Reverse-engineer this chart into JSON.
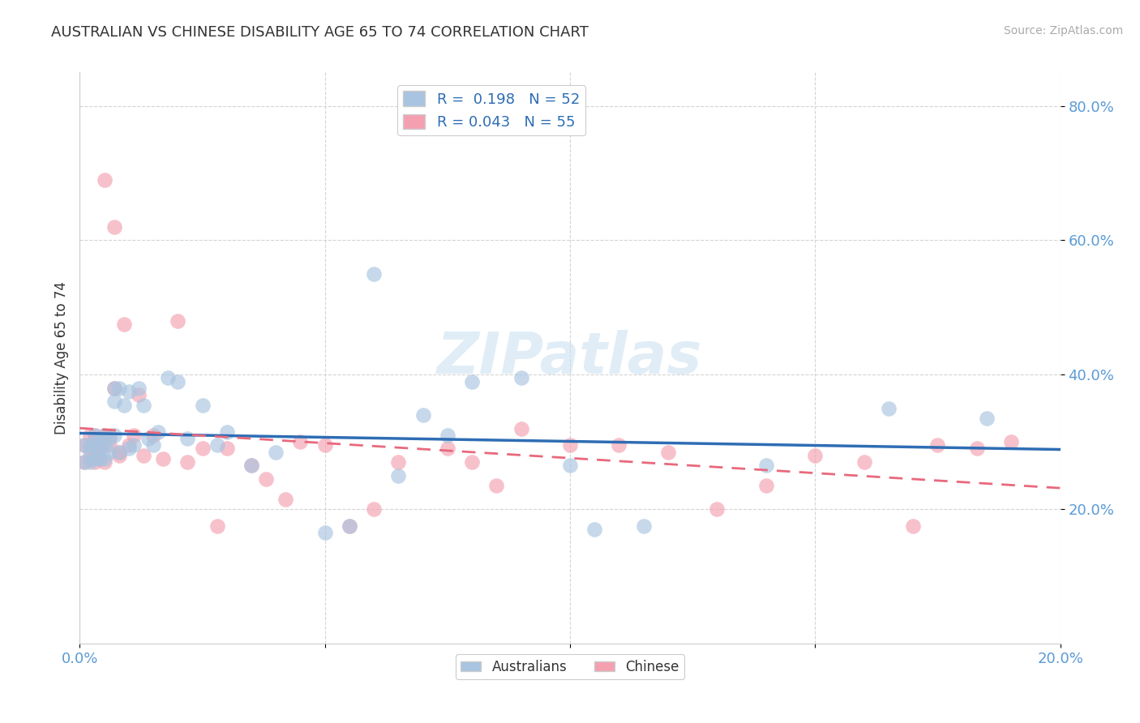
{
  "title": "AUSTRALIAN VS CHINESE DISABILITY AGE 65 TO 74 CORRELATION CHART",
  "source": "Source: ZipAtlas.com",
  "ylabel": "Disability Age 65 to 74",
  "xlim": [
    0.0,
    0.2
  ],
  "ylim": [
    0.0,
    0.85
  ],
  "x_ticks": [
    0.0,
    0.05,
    0.1,
    0.15,
    0.2
  ],
  "x_tick_labels": [
    "0.0%",
    "",
    "",
    "",
    "20.0%"
  ],
  "y_ticks": [
    0.2,
    0.4,
    0.6,
    0.8
  ],
  "y_tick_labels": [
    "20.0%",
    "40.0%",
    "60.0%",
    "80.0%"
  ],
  "grid_color": "#cccccc",
  "background_color": "#ffffff",
  "tick_color": "#5b9bd5",
  "australian_color": "#a8c4e0",
  "chinese_color": "#f4a0b0",
  "australian_line_color": "#2e6db4",
  "chinese_line_color": "#e8697d",
  "R_australian": 0.198,
  "N_australian": 52,
  "R_chinese": 0.043,
  "N_chinese": 55,
  "watermark": "ZIPatlas",
  "aus_x": [
    0.001,
    0.001,
    0.002,
    0.002,
    0.002,
    0.003,
    0.003,
    0.003,
    0.004,
    0.004,
    0.004,
    0.005,
    0.005,
    0.005,
    0.006,
    0.006,
    0.007,
    0.007,
    0.007,
    0.008,
    0.008,
    0.009,
    0.01,
    0.01,
    0.011,
    0.012,
    0.013,
    0.014,
    0.015,
    0.016,
    0.018,
    0.02,
    0.022,
    0.025,
    0.028,
    0.03,
    0.035,
    0.04,
    0.05,
    0.055,
    0.06,
    0.065,
    0.07,
    0.075,
    0.08,
    0.09,
    0.1,
    0.105,
    0.115,
    0.14,
    0.165,
    0.185
  ],
  "aus_y": [
    0.295,
    0.27,
    0.285,
    0.295,
    0.27,
    0.31,
    0.295,
    0.275,
    0.305,
    0.29,
    0.275,
    0.31,
    0.295,
    0.275,
    0.285,
    0.305,
    0.38,
    0.36,
    0.31,
    0.285,
    0.38,
    0.355,
    0.29,
    0.375,
    0.295,
    0.38,
    0.355,
    0.305,
    0.295,
    0.315,
    0.395,
    0.39,
    0.305,
    0.355,
    0.295,
    0.315,
    0.265,
    0.285,
    0.165,
    0.175,
    0.55,
    0.25,
    0.34,
    0.31,
    0.39,
    0.395,
    0.265,
    0.17,
    0.175,
    0.265,
    0.35,
    0.335
  ],
  "chi_x": [
    0.001,
    0.001,
    0.002,
    0.002,
    0.002,
    0.003,
    0.003,
    0.003,
    0.004,
    0.004,
    0.004,
    0.005,
    0.005,
    0.005,
    0.006,
    0.006,
    0.007,
    0.007,
    0.008,
    0.008,
    0.009,
    0.01,
    0.011,
    0.012,
    0.013,
    0.015,
    0.017,
    0.02,
    0.022,
    0.025,
    0.028,
    0.03,
    0.035,
    0.038,
    0.042,
    0.045,
    0.05,
    0.055,
    0.06,
    0.065,
    0.075,
    0.08,
    0.085,
    0.09,
    0.1,
    0.11,
    0.12,
    0.13,
    0.14,
    0.15,
    0.16,
    0.17,
    0.175,
    0.183,
    0.19
  ],
  "chi_y": [
    0.295,
    0.27,
    0.31,
    0.29,
    0.275,
    0.31,
    0.295,
    0.27,
    0.3,
    0.295,
    0.275,
    0.31,
    0.69,
    0.27,
    0.295,
    0.31,
    0.62,
    0.38,
    0.285,
    0.28,
    0.475,
    0.295,
    0.31,
    0.37,
    0.28,
    0.31,
    0.275,
    0.48,
    0.27,
    0.29,
    0.175,
    0.29,
    0.265,
    0.245,
    0.215,
    0.3,
    0.295,
    0.175,
    0.2,
    0.27,
    0.29,
    0.27,
    0.235,
    0.32,
    0.295,
    0.295,
    0.285,
    0.2,
    0.235,
    0.28,
    0.27,
    0.175,
    0.295,
    0.29,
    0.3
  ]
}
